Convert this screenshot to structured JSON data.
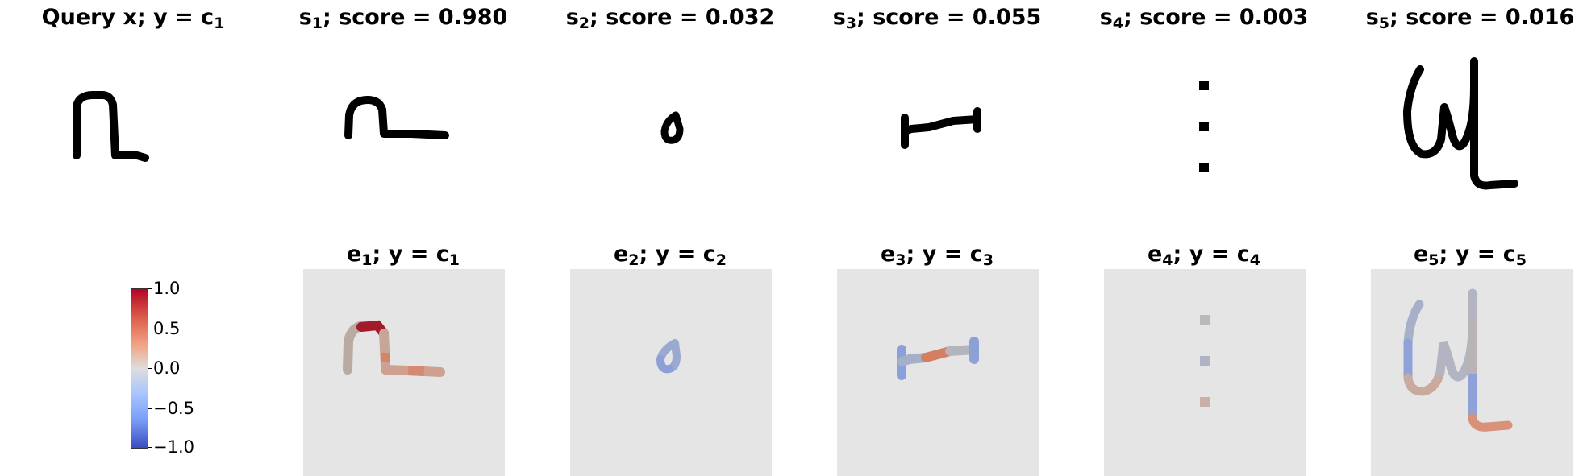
{
  "top_titles": [
    {
      "pre": "Query x; y",
      "eq": " = ",
      "var": "c",
      "sub": "1",
      "post": ""
    },
    {
      "pre": "s",
      "sub": "1",
      "post": "; score = 0.980"
    },
    {
      "pre": "s",
      "sub": "2",
      "post": "; score = 0.032"
    },
    {
      "pre": "s",
      "sub": "3",
      "post": "; score = 0.055"
    },
    {
      "pre": "s",
      "sub": "4",
      "post": "; score = 0.003"
    },
    {
      "pre": "s",
      "sub": "5",
      "post": "; score = 0.016"
    }
  ],
  "bottom_titles": [
    {
      "e": "e",
      "esub": "1",
      "mid": "; y = ",
      "c": "c",
      "csub": "1"
    },
    {
      "e": "e",
      "esub": "2",
      "mid": "; y = ",
      "c": "c",
      "csub": "2"
    },
    {
      "e": "e",
      "esub": "3",
      "mid": "; y = ",
      "c": "c",
      "csub": "3"
    },
    {
      "e": "e",
      "esub": "4",
      "mid": "; y = ",
      "c": "c",
      "csub": "4"
    },
    {
      "e": "e",
      "esub": "5",
      "mid": "; y = ",
      "c": "c",
      "csub": "5"
    }
  ],
  "colorbar": {
    "ticks": [
      "1.0",
      "0.5",
      "0.0",
      "−0.5",
      "−1.0"
    ],
    "range": [
      -1.0,
      1.0
    ],
    "colormap": "coolwarm",
    "colors": {
      "high": "#b40426",
      "mid": "#dddddd",
      "low": "#3b4cc0"
    }
  },
  "colors": {
    "stroke": "#000000",
    "explanation_bg": "#e5e5e5",
    "neutral": "#b5b5b5",
    "warm": "#d88b73",
    "hot": "#a81c2c",
    "cool": "#8ea2d4"
  }
}
